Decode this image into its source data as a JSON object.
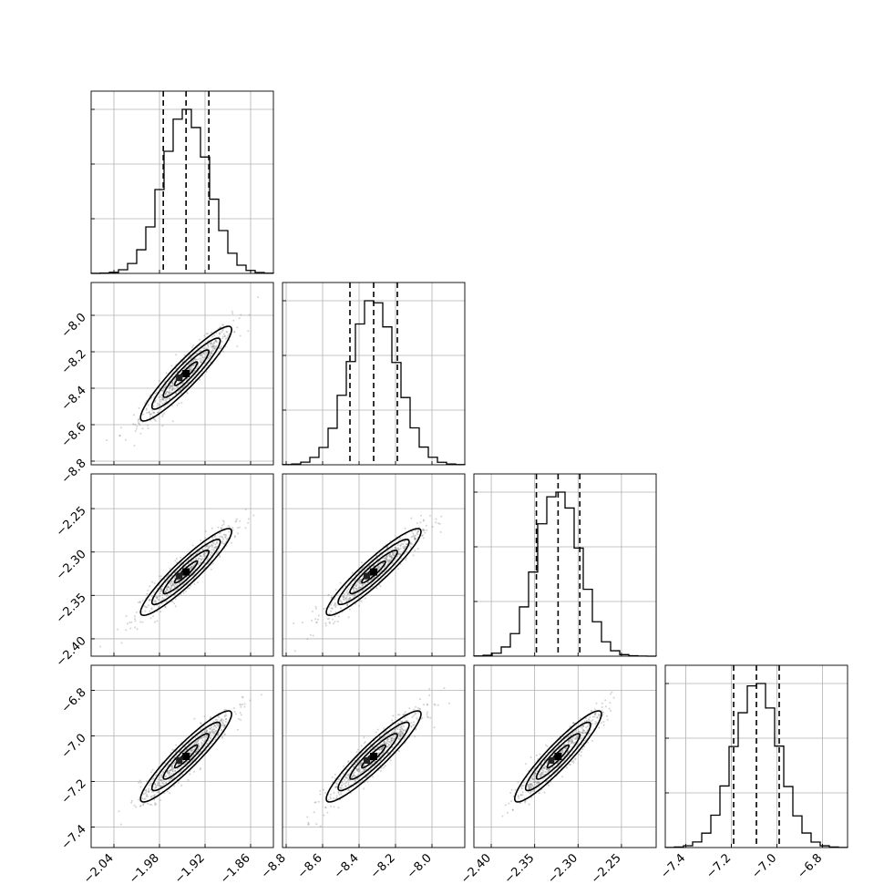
{
  "chart_data": {
    "type": "corner",
    "params": [
      {
        "mean": -1.945,
        "sd": 0.03,
        "quantiles": [
          -1.975,
          -1.945,
          -1.915
        ],
        "range": [
          -2.07,
          -1.83
        ],
        "ticks": [
          -2.04,
          -1.98,
          -1.92,
          -1.86
        ],
        "tick_labels": [
          "−2.04",
          "−1.98",
          "−1.92",
          "−1.86"
        ]
      },
      {
        "mean": -8.32,
        "sd": 0.13,
        "quantiles": [
          -8.45,
          -8.32,
          -8.19
        ],
        "range": [
          -8.82,
          -7.82
        ],
        "ticks": [
          -8.8,
          -8.6,
          -8.4,
          -8.2,
          -8.0
        ],
        "tick_labels": [
          "−8.8",
          "−8.6",
          "−8.4",
          "−8.2",
          "−8.0"
        ]
      },
      {
        "mean": -2.323,
        "sd": 0.025,
        "quantiles": [
          -2.348,
          -2.323,
          -2.298
        ],
        "range": [
          -2.42,
          -2.21
        ],
        "ticks": [
          -2.4,
          -2.35,
          -2.3,
          -2.25
        ],
        "tick_labels": [
          "−2.40",
          "−2.35",
          "−2.30",
          "−2.25"
        ]
      },
      {
        "mean": -7.09,
        "sd": 0.1,
        "quantiles": [
          -7.19,
          -7.09,
          -6.99
        ],
        "range": [
          -7.49,
          -6.69
        ],
        "ticks": [
          -7.4,
          -7.2,
          -7.0,
          -6.8
        ],
        "tick_labels": [
          "−7.4",
          "−7.2",
          "−7.0",
          "−6.8"
        ]
      }
    ],
    "y_tick_params": [
      1,
      2,
      3
    ],
    "correlation": 0.93,
    "contour_levels_sigma": [
      0.5,
      1.0,
      1.5,
      2.0
    ],
    "histogram_bins": 20,
    "grid": true,
    "colors": {
      "line": "#000000",
      "points": "#808080",
      "grid": "#b0b0b0"
    }
  }
}
